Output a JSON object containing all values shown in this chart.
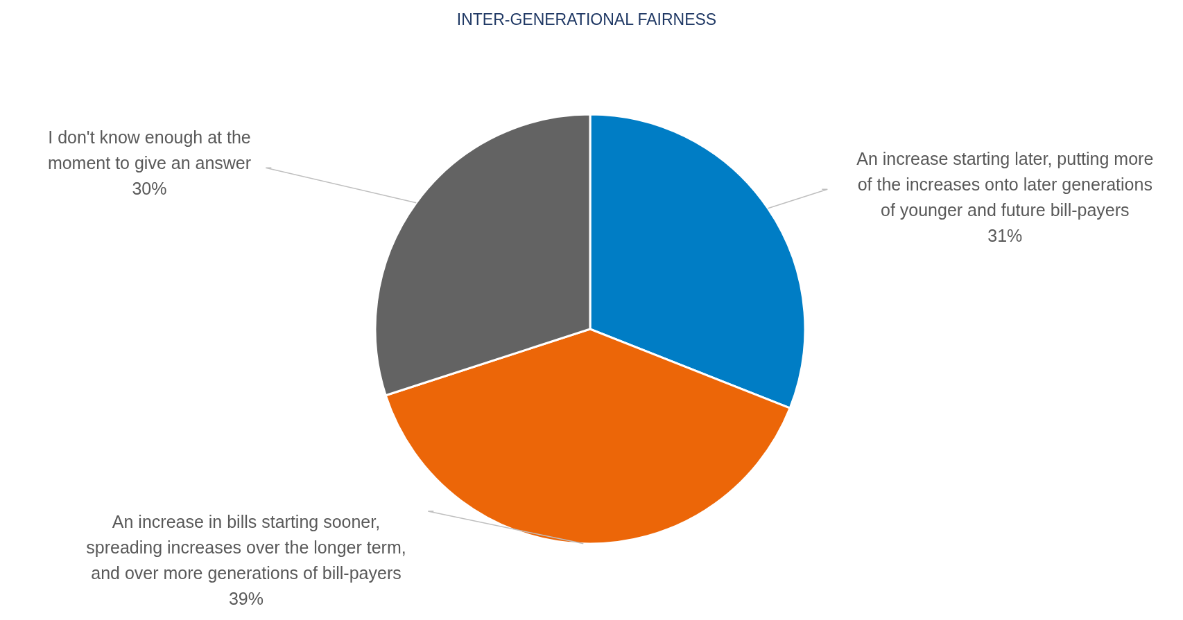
{
  "chart_data": {
    "type": "pie",
    "title": "INTER-GENERATIONAL FAIRNESS",
    "categories": [
      "An increase starting later, putting more of the increases onto later generations of younger and future bill-payers",
      "An increase in bills starting sooner, spreading increases over the longer term, and over more generations of bill-payers",
      "I don't know enough at the moment to give an answer"
    ],
    "values": [
      31,
      39,
      30
    ],
    "colors": [
      "#007dc5",
      "#ec6608",
      "#636363"
    ],
    "value_labels": [
      "31%",
      "39%",
      "30%"
    ]
  }
}
